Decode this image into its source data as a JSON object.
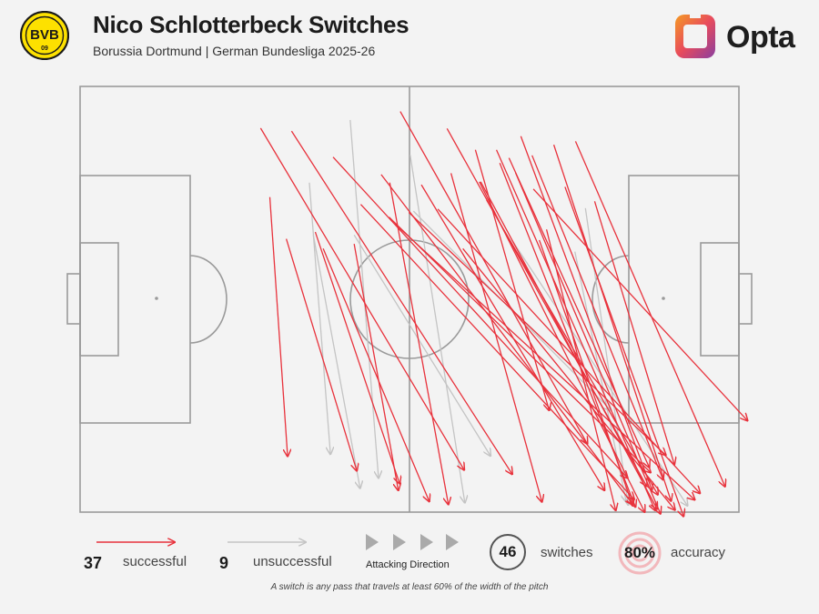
{
  "header": {
    "title": "Nico Schlotterbeck Switches",
    "subtitle": "Borussia Dortmund | German Bundesliga 2025-26",
    "crest_text": "BVB",
    "crest_year": "09",
    "brand": "Opta"
  },
  "colors": {
    "successful": "#e8323c",
    "unsuccessful": "#c4c4c4",
    "pitch_lines": "#9a9a9a",
    "background": "#f3f3f3",
    "crest_yellow": "#fde100",
    "brand_orange": "#f28c28",
    "brand_purple": "#8a3fa0"
  },
  "legend": {
    "successful_count": "37",
    "successful_label": "successful",
    "unsuccessful_count": "9",
    "unsuccessful_label": "unsuccessful",
    "direction_label": "Attacking Direction",
    "switches_count": "46",
    "switches_label": "switches",
    "accuracy_value": "80%",
    "accuracy_label": "accuracy",
    "footnote": "A switch is any pass that travels at least 60% of the width of the pitch"
  },
  "chart_data": {
    "type": "pass-map",
    "x_range": [
      0,
      100
    ],
    "y_range": [
      0,
      100
    ],
    "passes": [
      {
        "x1": 27.4,
        "y1": 9.8,
        "x2": 58.3,
        "y2": 90.1,
        "outcome": "successful"
      },
      {
        "x1": 32.1,
        "y1": 10.5,
        "x2": 65.6,
        "y2": 91.1,
        "outcome": "successful"
      },
      {
        "x1": 48.6,
        "y1": 5.9,
        "x2": 77.0,
        "y2": 84.0,
        "outcome": "successful"
      },
      {
        "x1": 55.7,
        "y1": 9.9,
        "x2": 86.0,
        "y2": 93.9,
        "outcome": "successful"
      },
      {
        "x1": 66.9,
        "y1": 11.7,
        "x2": 86.8,
        "y2": 94.8,
        "outcome": "successful"
      },
      {
        "x1": 60.0,
        "y1": 14.9,
        "x2": 71.2,
        "y2": 76.1,
        "outcome": "successful"
      },
      {
        "x1": 68.8,
        "y1": 24.1,
        "x2": 101.3,
        "y2": 78.5,
        "outcome": "successful"
      },
      {
        "x1": 56.3,
        "y1": 20.4,
        "x2": 70.1,
        "y2": 97.6,
        "outcome": "successful"
      },
      {
        "x1": 69.7,
        "y1": 36.1,
        "x2": 83.9,
        "y2": 98.5,
        "outcome": "successful"
      },
      {
        "x1": 60.6,
        "y1": 22.4,
        "x2": 85.7,
        "y2": 100.0,
        "outcome": "successful"
      },
      {
        "x1": 73.6,
        "y1": 23.6,
        "x2": 91.6,
        "y2": 101.0,
        "outcome": "successful"
      },
      {
        "x1": 75.2,
        "y1": 12.9,
        "x2": 97.9,
        "y2": 94.0,
        "outcome": "successful"
      },
      {
        "x1": 54.3,
        "y1": 28.8,
        "x2": 94.1,
        "y2": 95.6,
        "outcome": "successful"
      },
      {
        "x1": 38.4,
        "y1": 16.6,
        "x2": 83.1,
        "y2": 92.0,
        "outcome": "successful"
      },
      {
        "x1": 45.7,
        "y1": 20.7,
        "x2": 83.9,
        "y2": 98.2,
        "outcome": "successful"
      },
      {
        "x1": 63.2,
        "y1": 14.9,
        "x2": 87.3,
        "y2": 99.6,
        "outcome": "successful"
      },
      {
        "x1": 51.8,
        "y1": 23.1,
        "x2": 79.6,
        "y2": 94.9,
        "outcome": "successful"
      },
      {
        "x1": 70.8,
        "y1": 33.6,
        "x2": 81.3,
        "y2": 99.6,
        "outcome": "successful"
      },
      {
        "x1": 58.1,
        "y1": 38.1,
        "x2": 90.3,
        "y2": 99.5,
        "outcome": "successful"
      },
      {
        "x1": 68.6,
        "y1": 16.2,
        "x2": 88.5,
        "y2": 92.4,
        "outcome": "successful"
      },
      {
        "x1": 63.7,
        "y1": 18.0,
        "x2": 84.3,
        "y2": 98.8,
        "outcome": "successful"
      },
      {
        "x1": 60.8,
        "y1": 22.4,
        "x2": 87.6,
        "y2": 99.3,
        "outcome": "successful"
      },
      {
        "x1": 46.9,
        "y1": 30.7,
        "x2": 86.6,
        "y2": 90.7,
        "outcome": "successful"
      },
      {
        "x1": 42.6,
        "y1": 27.7,
        "x2": 84.1,
        "y2": 97.0,
        "outcome": "successful"
      },
      {
        "x1": 78.1,
        "y1": 27.0,
        "x2": 90.2,
        "y2": 88.8,
        "outcome": "successful"
      },
      {
        "x1": 66.1,
        "y1": 20.3,
        "x2": 88.1,
        "y2": 100.4,
        "outcome": "successful"
      },
      {
        "x1": 61.7,
        "y1": 26.7,
        "x2": 87.7,
        "y2": 95.9,
        "outcome": "successful"
      },
      {
        "x1": 65.1,
        "y1": 16.8,
        "x2": 86.4,
        "y2": 89.5,
        "outcome": "successful"
      },
      {
        "x1": 71.9,
        "y1": 13.7,
        "x2": 89.7,
        "y2": 97.4,
        "outcome": "successful"
      },
      {
        "x1": 47.8,
        "y1": 32.3,
        "x2": 93.3,
        "y2": 97.1,
        "outcome": "successful"
      },
      {
        "x1": 49.9,
        "y1": 29.6,
        "x2": 88.9,
        "y2": 86.6,
        "outcome": "successful"
      },
      {
        "x1": 28.8,
        "y1": 26.0,
        "x2": 31.5,
        "y2": 86.9,
        "outcome": "successful"
      },
      {
        "x1": 36.9,
        "y1": 38.1,
        "x2": 53.0,
        "y2": 97.5,
        "outcome": "successful"
      },
      {
        "x1": 41.6,
        "y1": 37.0,
        "x2": 48.3,
        "y2": 94.9,
        "outcome": "successful"
      },
      {
        "x1": 35.7,
        "y1": 34.2,
        "x2": 48.5,
        "y2": 93.3,
        "outcome": "successful"
      },
      {
        "x1": 31.3,
        "y1": 35.8,
        "x2": 42.0,
        "y2": 90.3,
        "outcome": "successful"
      },
      {
        "x1": 47.0,
        "y1": 22.6,
        "x2": 55.9,
        "y2": 98.2,
        "outcome": "successful"
      },
      {
        "x1": 41.0,
        "y1": 7.9,
        "x2": 45.3,
        "y2": 92.0,
        "outcome": "unsuccessful"
      },
      {
        "x1": 50.1,
        "y1": 16.1,
        "x2": 58.4,
        "y2": 97.8,
        "outcome": "unsuccessful"
      },
      {
        "x1": 75.1,
        "y1": 38.8,
        "x2": 82.9,
        "y2": 97.6,
        "outcome": "unsuccessful"
      },
      {
        "x1": 65.5,
        "y1": 36.0,
        "x2": 92.2,
        "y2": 98.5,
        "outcome": "unsuccessful"
      },
      {
        "x1": 41.6,
        "y1": 34.9,
        "x2": 62.3,
        "y2": 86.8,
        "outcome": "unsuccessful"
      },
      {
        "x1": 34.8,
        "y1": 22.6,
        "x2": 38.0,
        "y2": 86.4,
        "outcome": "unsuccessful"
      },
      {
        "x1": 76.7,
        "y1": 28.6,
        "x2": 83.2,
        "y2": 98.3,
        "outcome": "unsuccessful"
      },
      {
        "x1": 35.4,
        "y1": 34.9,
        "x2": 42.5,
        "y2": 94.4,
        "outcome": "unsuccessful"
      },
      {
        "x1": 50.6,
        "y1": 29.3,
        "x2": 80.6,
        "y2": 76.1,
        "outcome": "unsuccessful"
      }
    ]
  }
}
